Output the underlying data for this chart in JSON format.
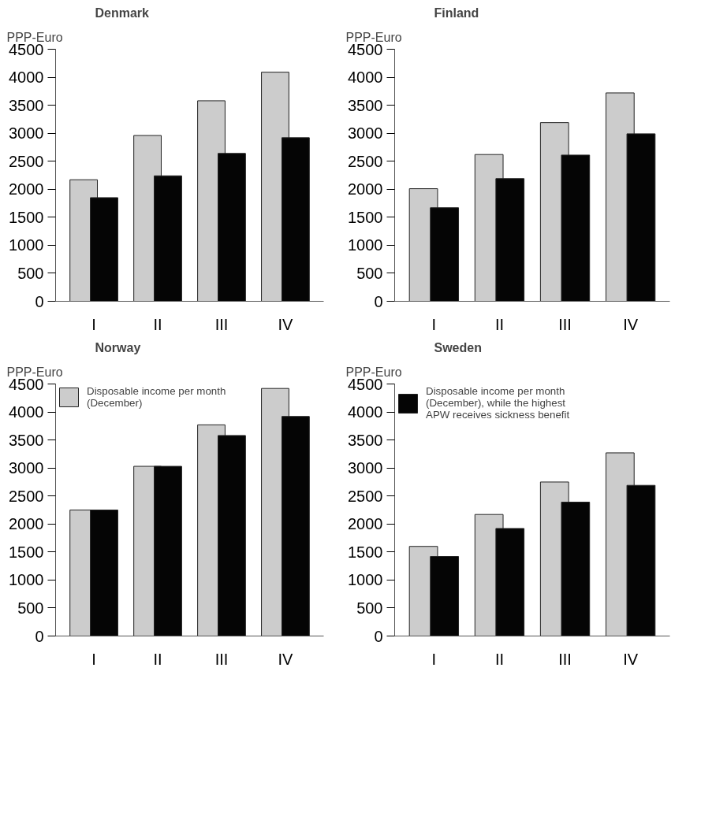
{
  "chart_data": [
    {
      "type": "bar",
      "title": "Denmark",
      "ylabel": "PPP-Euro",
      "categories": [
        "I",
        "II",
        "III",
        "IV"
      ],
      "ylim": [
        0,
        4500
      ],
      "yticks": [
        0,
        500,
        1000,
        1500,
        2000,
        2500,
        3000,
        3500,
        4000,
        4500
      ],
      "grid": false,
      "series": [
        {
          "color": "#cccccc",
          "values": [
            2170,
            2960,
            3580,
            4090
          ]
        },
        {
          "color": "#050505",
          "values": [
            1850,
            2240,
            2640,
            2920
          ]
        }
      ]
    },
    {
      "type": "bar",
      "title": "Finland",
      "ylabel": "PPP-Euro",
      "categories": [
        "I",
        "II",
        "III",
        "IV"
      ],
      "ylim": [
        0,
        4500
      ],
      "yticks": [
        0,
        500,
        1000,
        1500,
        2000,
        2500,
        3000,
        3500,
        4000,
        4500
      ],
      "grid": false,
      "series": [
        {
          "color": "#cccccc",
          "values": [
            2010,
            2620,
            3190,
            3720
          ]
        },
        {
          "color": "#050505",
          "values": [
            1670,
            2190,
            2610,
            2990
          ]
        }
      ]
    },
    {
      "type": "bar",
      "title": "Norway",
      "ylabel": "PPP-Euro",
      "categories": [
        "I",
        "II",
        "III",
        "IV"
      ],
      "ylim": [
        0,
        4500
      ],
      "yticks": [
        0,
        500,
        1000,
        1500,
        2000,
        2500,
        3000,
        3500,
        4000,
        4500
      ],
      "grid": false,
      "legend": "top left",
      "series": [
        {
          "name": "Disposable income per month (December)",
          "color": "#cccccc",
          "values": [
            2250,
            3030,
            3770,
            4420
          ]
        },
        {
          "color": "#050505",
          "values": [
            2250,
            3030,
            3580,
            3920
          ]
        }
      ]
    },
    {
      "type": "bar",
      "title": "Sweden",
      "ylabel": "PPP-Euro",
      "categories": [
        "I",
        "II",
        "III",
        "IV"
      ],
      "ylim": [
        0,
        4500
      ],
      "yticks": [
        0,
        500,
        1000,
        1500,
        2000,
        2500,
        3000,
        3500,
        4000,
        4500
      ],
      "grid": false,
      "legend": "top left",
      "series": [
        {
          "color": "#cccccc",
          "values": [
            1600,
            2170,
            2750,
            3270
          ]
        },
        {
          "name": "Disposable income per month (December), while the highest APW receives sickness benefit",
          "color": "#050505",
          "values": [
            1420,
            1920,
            2390,
            2690
          ]
        }
      ]
    }
  ]
}
